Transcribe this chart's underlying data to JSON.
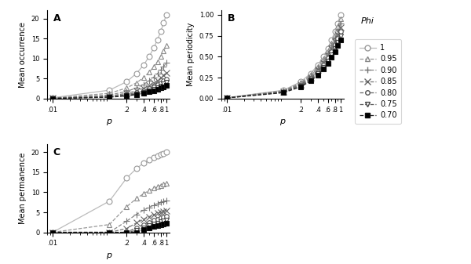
{
  "p_values": [
    0.01,
    0.1,
    0.2,
    0.3,
    0.4,
    0.5,
    0.6,
    0.7,
    0.8,
    0.9,
    1.0
  ],
  "phi_values": [
    1.0,
    0.95,
    0.9,
    0.85,
    0.8,
    0.75,
    0.7
  ],
  "phi_labels": [
    "1",
    "0.95",
    "0.90",
    "0.85",
    "0.80",
    "0.75",
    "0.70"
  ],
  "markers": [
    "o",
    "^",
    "+",
    "x",
    "o",
    "v",
    "s"
  ],
  "marker_sizes": [
    5,
    5,
    6,
    6,
    4,
    4,
    4
  ],
  "line_styles": [
    "-",
    "--",
    "--",
    "--",
    "--",
    "--",
    "--"
  ],
  "line_colors": [
    "#bbbbbb",
    "#999999",
    "#888888",
    "#777777",
    "#666666",
    "#555555",
    "#222222"
  ],
  "marker_facecolors": [
    "white",
    "white",
    "none",
    "none",
    "white",
    "white",
    "black"
  ],
  "marker_edgecolors": [
    "#999999",
    "#888888",
    "#777777",
    "#666666",
    "#555555",
    "#444444",
    "#111111"
  ],
  "ylabel_A": "Mean occurrence",
  "ylabel_B": "Mean periodicity",
  "ylabel_C": "Mean permanence",
  "xlabel": "p",
  "legend_title": "Phi",
  "panel_A": "A",
  "panel_B": "B",
  "panel_C": "C",
  "N": 21
}
